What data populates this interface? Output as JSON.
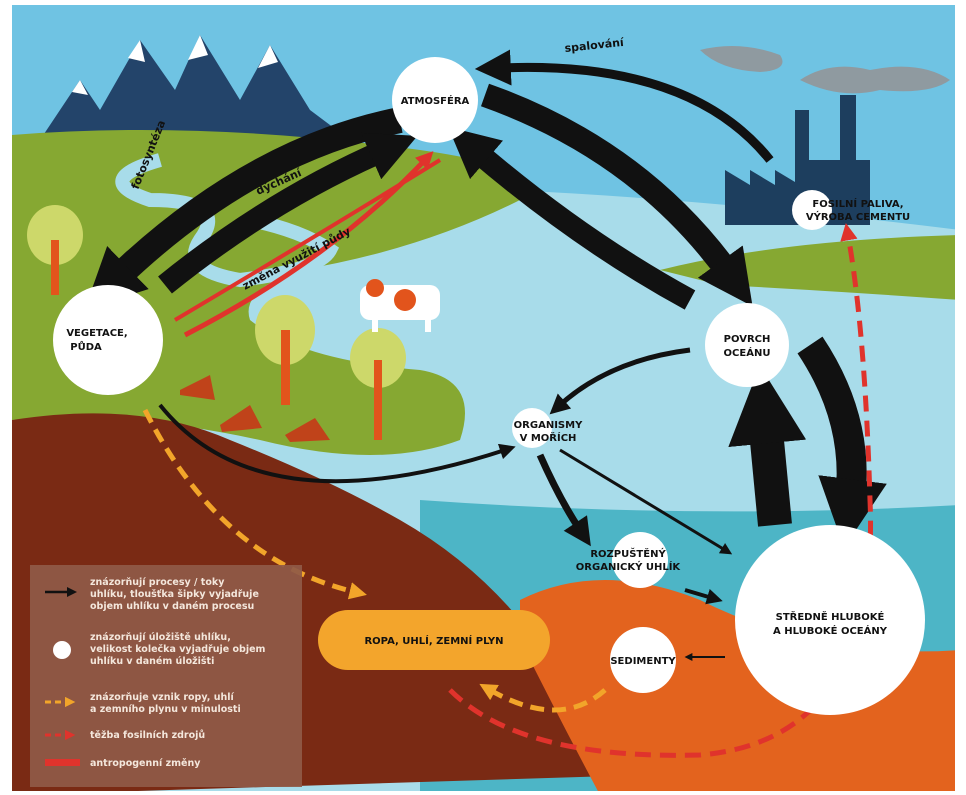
{
  "nodes": {
    "atmosphere": {
      "lines": [
        "ATMOSFÉRA"
      ]
    },
    "vegetation": {
      "lines": [
        "VEGETACE,",
        "PŮDA"
      ]
    },
    "fossil_fuels": {
      "lines": [
        "FOSILNÍ PALIVA,",
        "VÝROBA CEMENTU"
      ]
    },
    "ocean_surface": {
      "lines": [
        "POVRCH",
        "OCEÁNU"
      ]
    },
    "marine_organisms": {
      "lines": [
        "ORGANISMY",
        "V MOŘÍCH"
      ]
    },
    "dissolved_carbon": {
      "lines": [
        "ROZPUŠTĚNÝ",
        "ORGANICKÝ UHLÍK"
      ]
    },
    "deep_ocean": {
      "lines": [
        "STŘEDNĚ HLUBOKÉ",
        "A HLUBOKÉ OCEÁNY"
      ]
    },
    "sediments": {
      "lines": [
        "SEDIMENTY"
      ]
    },
    "fossil_reserves": {
      "lines": [
        "ROPA, UHLÍ, ZEMNÍ PLYN"
      ]
    }
  },
  "flows": {
    "combustion": "spalování",
    "photosynthesis": "fotosyntéza",
    "respiration": "dýchání",
    "land_use_change": "změna využití půdy"
  },
  "legend": {
    "items": [
      {
        "lines": [
          "znázorňují procesy / toky",
          "uhlíku, tloušťka šipky vyjadřuje",
          "objem uhlíku v daném procesu"
        ]
      },
      {
        "lines": [
          "znázorňují úložiště uhlíku,",
          "velikost kolečka vyjadřuje objem",
          "uhlíku v daném úložišti"
        ]
      },
      {
        "lines": [
          "znázorňuje vznik ropy, uhlí",
          "a zemního plynu v minulosti"
        ]
      },
      {
        "lines": [
          "těžba fosilních zdrojů"
        ]
      },
      {
        "lines": [
          "antropogenní změny"
        ]
      }
    ]
  }
}
